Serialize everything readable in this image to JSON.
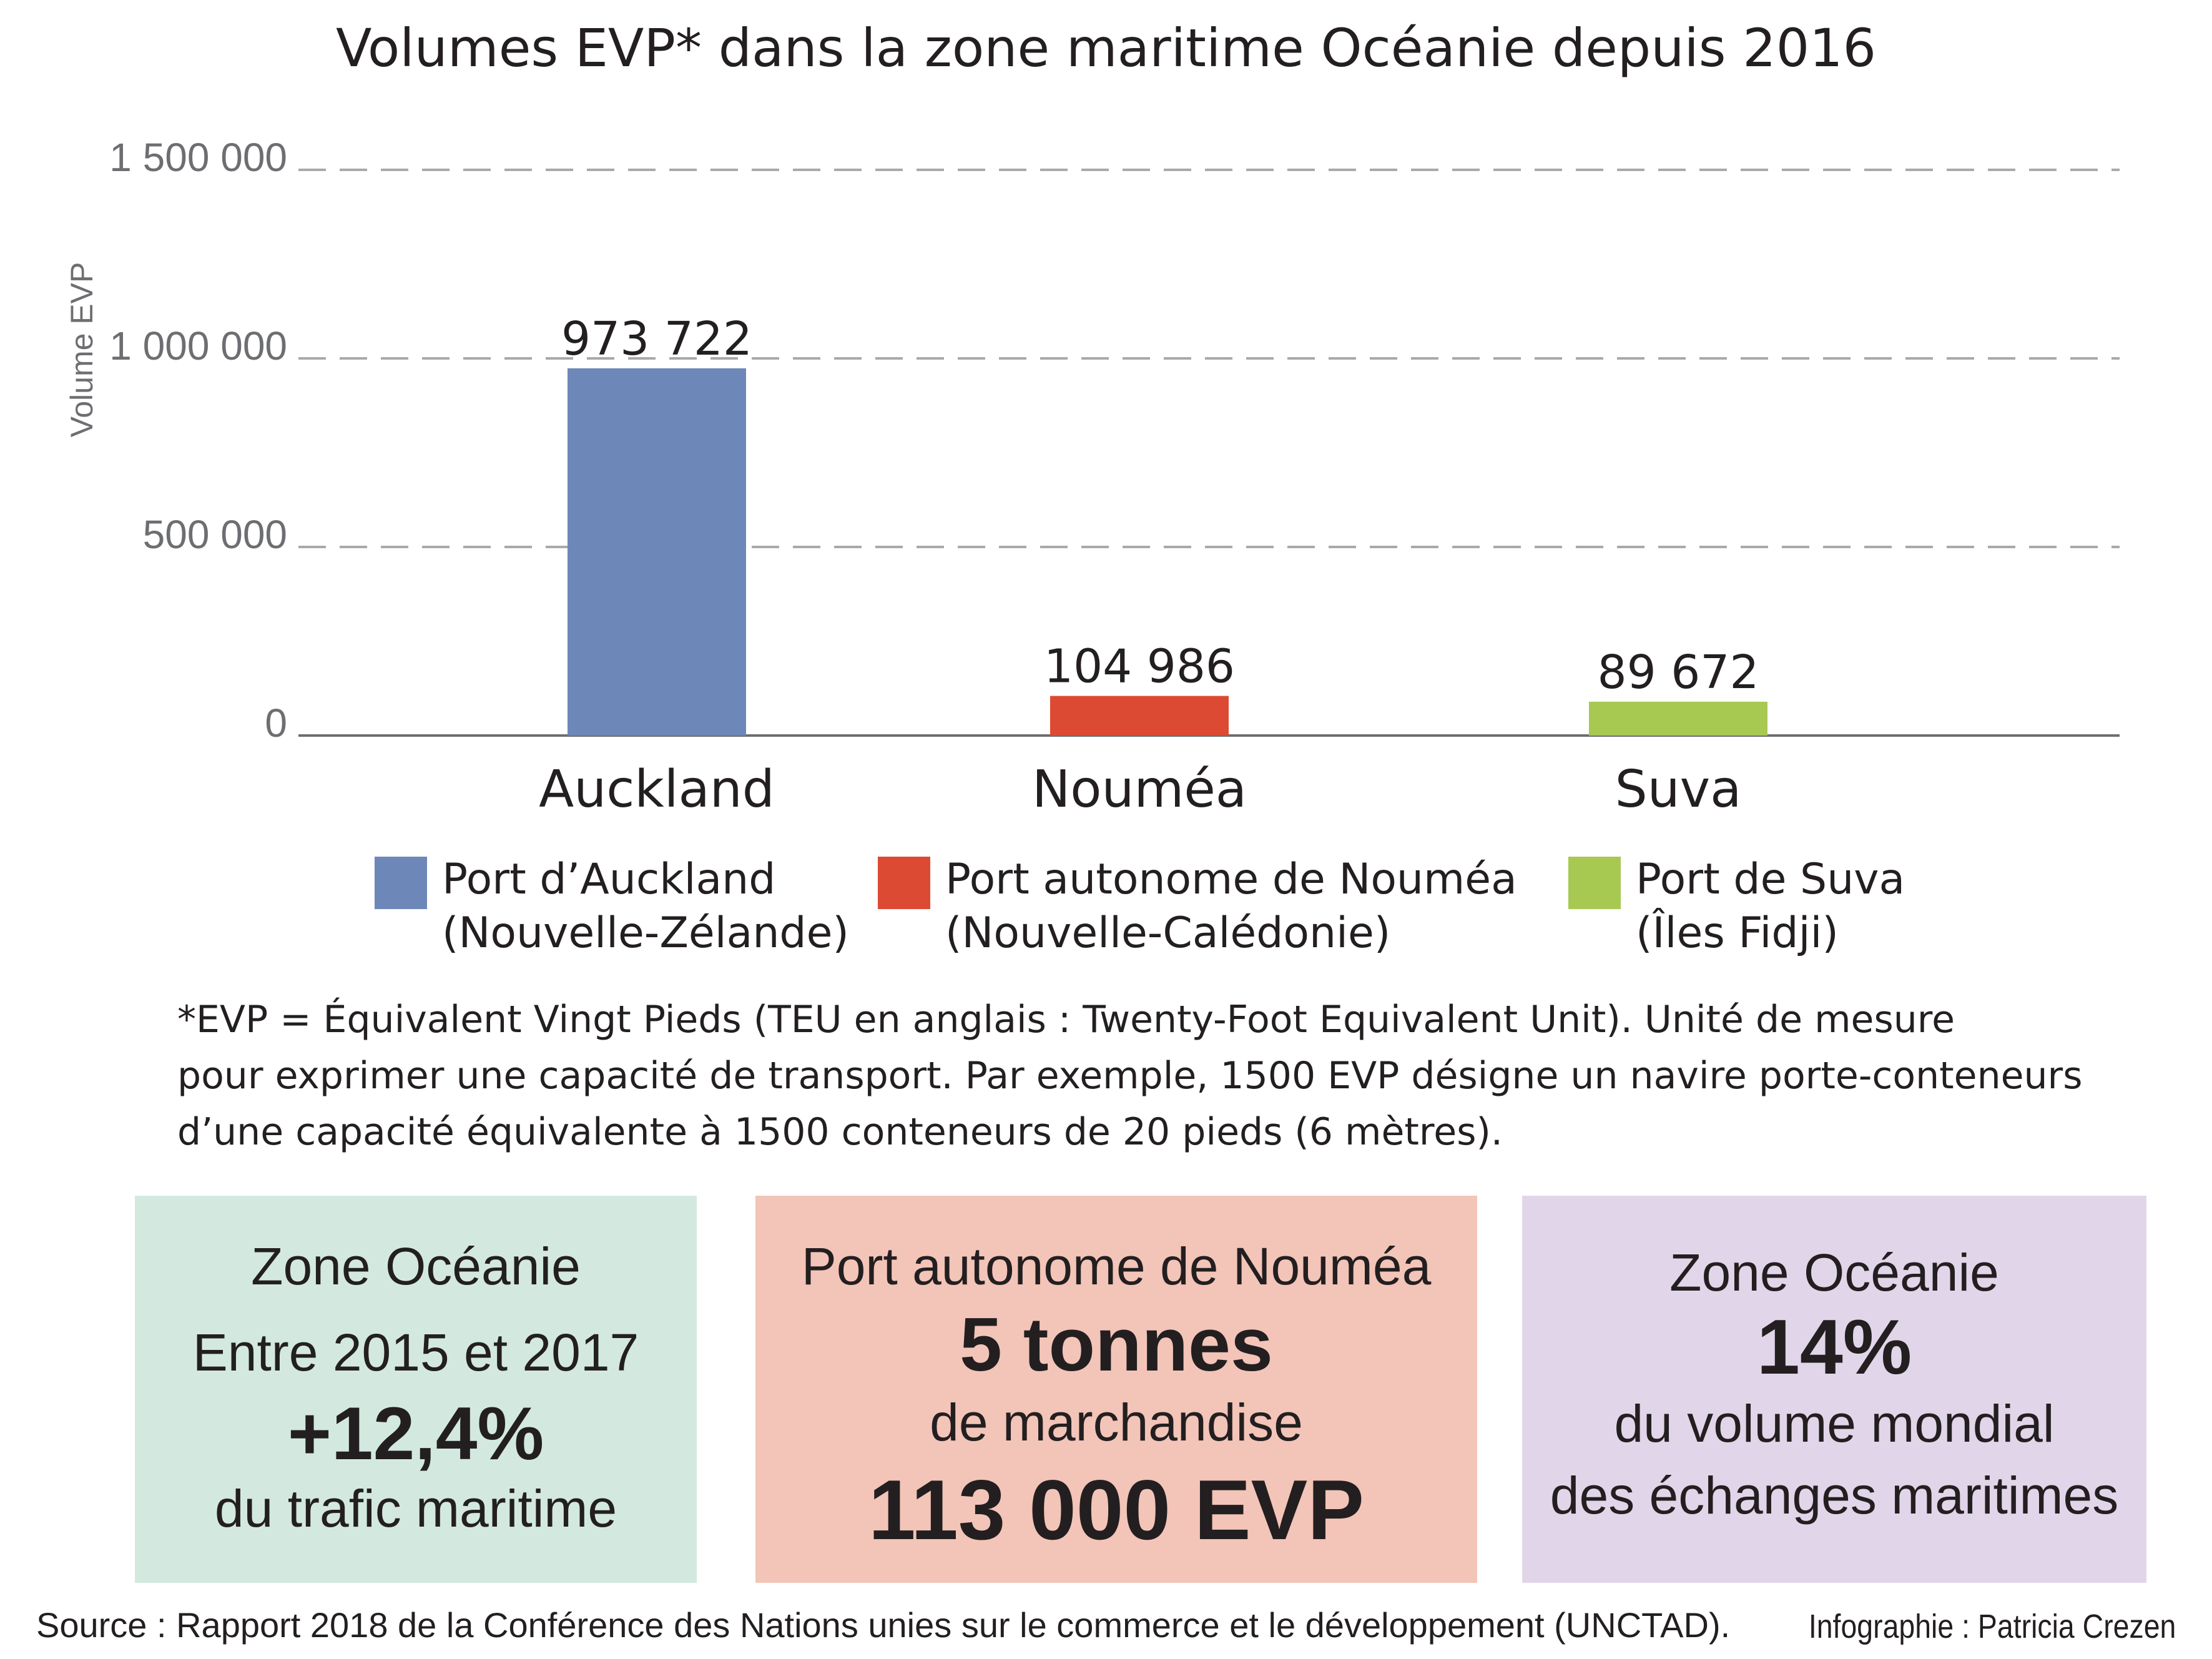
{
  "title": "Volumes EVP* dans la zone maritime Océanie depuis 2016",
  "chart_data": {
    "type": "bar",
    "title": "Volumes EVP* dans la zone maritime Océanie depuis 2016",
    "categories": [
      "Auckland",
      "Nouméa",
      "Suva"
    ],
    "values": [
      973722,
      104986,
      89672
    ],
    "value_labels": [
      "973 722",
      "104 986",
      "89 672"
    ],
    "colors": [
      "#6d88b8",
      "#dc4a33",
      "#a7c952"
    ],
    "xlabel": "",
    "ylabel": "Volume EVP",
    "ylim": [
      0,
      1500000
    ],
    "yticks": [
      0,
      500000,
      1000000,
      1500000
    ],
    "ytick_labels": [
      "0",
      "500 000",
      "1 000 000",
      "1 500 000"
    ],
    "grid": "dashed-horizontal"
  },
  "legend": [
    {
      "line1": "Port d’Auckland",
      "line2": "(Nouvelle-Zélande)",
      "color": "#6d88b8"
    },
    {
      "line1": "Port autonome de Nouméa",
      "line2": "(Nouvelle-Calédonie)",
      "color": "#dc4a33"
    },
    {
      "line1": "Port de Suva",
      "line2": "(Îles Fidji)",
      "color": "#a7c952"
    }
  ],
  "footnote": {
    "line1": "*EVP =  Équivalent Vingt Pieds (TEU en anglais : Twenty-Foot Equivalent Unit). Unité de mesure",
    "line2": "pour exprimer une capacité de transport. Par exemple, 1500 EVP désigne un navire porte-conteneurs",
    "line3": "d’une capacité équivalente à 1500 conteneurs de 20 pieds (6 mètres)."
  },
  "boxes": [
    {
      "color": "#d3e9df",
      "line1": "Zone Océanie",
      "line2": "Entre 2015 et 2017",
      "line3": "+12,4%",
      "line4": "du trafic maritime"
    },
    {
      "color": "#f3c4b8",
      "line1": "Port autonome de Nouméa",
      "line2": "5 tonnes",
      "line3": "de marchandise",
      "line4": "113 000 EVP"
    },
    {
      "color": "#e1d6e9",
      "line1": "Zone Océanie",
      "line2": "14%",
      "line3": "du volume mondial",
      "line4": "des échanges maritimes"
    }
  ],
  "source": "Source : Rapport 2018 de la Conférence des Nations unies sur le commerce et le développement (UNCTAD).",
  "credit": "Infographie : Patricia Crezen"
}
